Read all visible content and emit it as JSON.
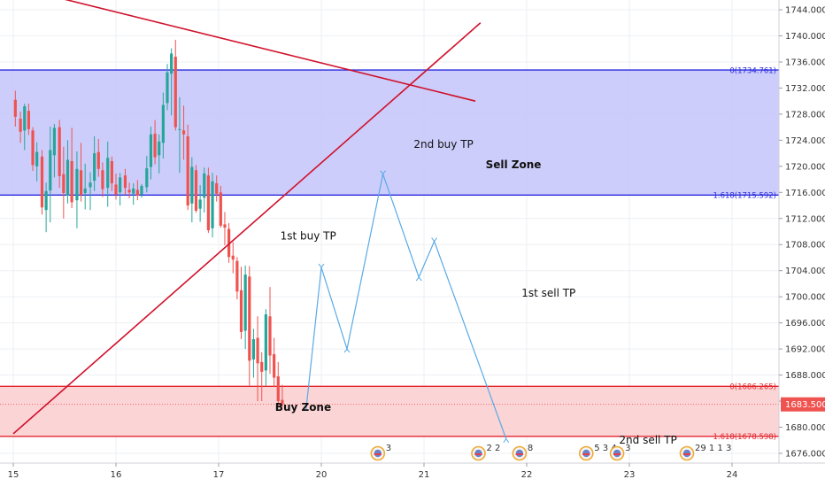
{
  "colors": {
    "up": "#26a69a",
    "down": "#ef5350",
    "sell_zone_fill": "#c7c8fb",
    "sell_zone_line": "#2a2adf",
    "buy_zone_fill": "#fbcfd2",
    "buy_zone_line": "#e3262d",
    "trendline": "#d0112b",
    "path": "#5aaae6",
    "grid": "#eeeff3",
    "price_tag": "#ef5350"
  },
  "chart_data": {
    "type": "candlestick",
    "title": "",
    "ylim": [
      1674.5,
      1745.5
    ],
    "y_ticks": [
      "1676.000",
      "1680.000",
      "1684.000",
      "1688.000",
      "1692.000",
      "1696.000",
      "1700.000",
      "1704.000",
      "1708.000",
      "1712.000",
      "1716.000",
      "1720.000",
      "1724.000",
      "1728.000",
      "1732.000",
      "1736.000",
      "1740.000",
      "1744.000"
    ],
    "x_ticks": [
      "15",
      "16",
      "17",
      "20",
      "21",
      "22",
      "23",
      "24"
    ],
    "current_price": "1683.500",
    "fib_levels": [
      {
        "label": "0(1734.761)",
        "price": 1734.761,
        "color": "sell"
      },
      {
        "label": "1.618(1715.592)",
        "price": 1715.592,
        "color": "sell"
      },
      {
        "label": "0(1686.265)",
        "price": 1686.265,
        "color": "buy"
      },
      {
        "label": "1.618(1678.598)",
        "price": 1678.598,
        "color": "buy"
      }
    ],
    "zones": [
      {
        "label": "Sell Zone",
        "top": 1734.761,
        "bottom": 1715.592
      },
      {
        "label": "Buy Zone",
        "top": 1686.265,
        "bottom": 1678.598
      }
    ],
    "annotations": [
      {
        "text": "2nd buy TP",
        "x": 17.9,
        "y": 1722.8
      },
      {
        "text": "1st buy TP",
        "x": 16.6,
        "y": 1708.8
      },
      {
        "text": "1st sell TP",
        "x": 18.95,
        "y": 1700.0
      },
      {
        "text": "2nd sell TP",
        "x": 19.9,
        "y": 1677.5
      }
    ],
    "zone_labels": [
      {
        "text": "Sell Zone",
        "x": 18.6,
        "y": 1719.7
      },
      {
        "text": "Buy Zone",
        "x": 16.55,
        "y": 1682.5
      }
    ],
    "trendlines": [
      {
        "from": [
          14.4,
          1746.0
        ],
        "to": [
          18.5,
          1730.0
        ]
      },
      {
        "from": [
          14.0,
          1679.0
        ],
        "to": [
          18.55,
          1742.0
        ]
      }
    ],
    "projection_path": [
      [
        16.85,
        1682.5
      ],
      [
        17.0,
        1704.5
      ],
      [
        17.25,
        1692.0
      ],
      [
        17.6,
        1718.8
      ],
      [
        17.95,
        1703.0
      ],
      [
        18.1,
        1708.5
      ],
      [
        18.8,
        1678.2
      ]
    ],
    "events": [
      {
        "x": 17.55,
        "count": "3"
      },
      {
        "x": 18.53,
        "count": "2 2"
      },
      {
        "x": 18.93,
        "count": "8"
      },
      {
        "x": 19.58,
        "count": "5 3 4"
      },
      {
        "x": 19.88,
        "count": "3"
      },
      {
        "x": 20.56,
        "count": "29 1 1 3"
      }
    ],
    "candles": [
      {
        "x": 14.02,
        "o": 1730.2,
        "h": 1731.6,
        "l": 1726.1,
        "c": 1727.6
      },
      {
        "x": 14.07,
        "o": 1727.3,
        "h": 1728.4,
        "l": 1723.6,
        "c": 1725.3
      },
      {
        "x": 14.11,
        "o": 1725.5,
        "h": 1729.6,
        "l": 1722.5,
        "c": 1729.2
      },
      {
        "x": 14.15,
        "o": 1728.5,
        "h": 1729.6,
        "l": 1724.8,
        "c": 1725.7
      },
      {
        "x": 14.19,
        "o": 1725.5,
        "h": 1726.0,
        "l": 1719.3,
        "c": 1720.2
      },
      {
        "x": 14.23,
        "o": 1720.0,
        "h": 1723.7,
        "l": 1717.7,
        "c": 1722.2
      },
      {
        "x": 14.28,
        "o": 1721.5,
        "h": 1722.5,
        "l": 1712.6,
        "c": 1713.7
      },
      {
        "x": 14.32,
        "o": 1713.3,
        "h": 1717.5,
        "l": 1709.9,
        "c": 1716.2
      },
      {
        "x": 14.36,
        "o": 1716.3,
        "h": 1726.1,
        "l": 1711.4,
        "c": 1722.5
      },
      {
        "x": 14.4,
        "o": 1721.7,
        "h": 1726.5,
        "l": 1718.3,
        "c": 1725.9
      },
      {
        "x": 14.45,
        "o": 1726.0,
        "h": 1727.1,
        "l": 1716.7,
        "c": 1718.5
      },
      {
        "x": 14.49,
        "o": 1718.8,
        "h": 1723.0,
        "l": 1712.0,
        "c": 1715.9
      },
      {
        "x": 14.53,
        "o": 1715.5,
        "h": 1724.0,
        "l": 1714.3,
        "c": 1721.0
      },
      {
        "x": 14.57,
        "o": 1720.8,
        "h": 1725.9,
        "l": 1713.6,
        "c": 1714.5
      },
      {
        "x": 14.62,
        "o": 1714.8,
        "h": 1722.3,
        "l": 1710.5,
        "c": 1719.6
      },
      {
        "x": 14.66,
        "o": 1719.4,
        "h": 1723.6,
        "l": 1714.6,
        "c": 1715.6
      },
      {
        "x": 14.7,
        "o": 1715.9,
        "h": 1720.4,
        "l": 1713.4,
        "c": 1716.6
      },
      {
        "x": 14.75,
        "o": 1716.8,
        "h": 1719.1,
        "l": 1713.3,
        "c": 1717.5
      },
      {
        "x": 14.79,
        "o": 1717.8,
        "h": 1724.6,
        "l": 1716.2,
        "c": 1722.0
      },
      {
        "x": 14.83,
        "o": 1722.2,
        "h": 1724.2,
        "l": 1718.4,
        "c": 1719.6
      },
      {
        "x": 14.87,
        "o": 1719.4,
        "h": 1720.6,
        "l": 1715.3,
        "c": 1716.5
      },
      {
        "x": 14.92,
        "o": 1716.7,
        "h": 1723.8,
        "l": 1713.8,
        "c": 1721.3
      },
      {
        "x": 14.96,
        "o": 1720.8,
        "h": 1721.5,
        "l": 1716.2,
        "c": 1717.4
      },
      {
        "x": 15.0,
        "o": 1717.2,
        "h": 1718.9,
        "l": 1714.9,
        "c": 1715.7
      },
      {
        "x": 15.04,
        "o": 1716.0,
        "h": 1719.0,
        "l": 1714.0,
        "c": 1718.3
      },
      {
        "x": 15.09,
        "o": 1718.6,
        "h": 1719.6,
        "l": 1715.6,
        "c": 1716.7
      },
      {
        "x": 15.13,
        "o": 1716.4,
        "h": 1717.5,
        "l": 1715.1,
        "c": 1716.0
      },
      {
        "x": 15.17,
        "o": 1715.8,
        "h": 1717.4,
        "l": 1714.1,
        "c": 1716.6
      },
      {
        "x": 15.21,
        "o": 1716.4,
        "h": 1717.9,
        "l": 1714.8,
        "c": 1715.5
      },
      {
        "x": 15.25,
        "o": 1715.7,
        "h": 1717.3,
        "l": 1715.2,
        "c": 1717.0
      },
      {
        "x": 15.3,
        "o": 1716.8,
        "h": 1721.6,
        "l": 1716.0,
        "c": 1719.7
      },
      {
        "x": 15.34,
        "o": 1719.9,
        "h": 1726.1,
        "l": 1718.0,
        "c": 1724.9
      },
      {
        "x": 15.38,
        "o": 1725.0,
        "h": 1727.1,
        "l": 1720.3,
        "c": 1721.4
      },
      {
        "x": 15.42,
        "o": 1721.7,
        "h": 1724.9,
        "l": 1718.9,
        "c": 1723.8
      },
      {
        "x": 15.46,
        "o": 1723.6,
        "h": 1731.3,
        "l": 1721.2,
        "c": 1729.4
      },
      {
        "x": 15.5,
        "o": 1729.7,
        "h": 1735.7,
        "l": 1728.6,
        "c": 1734.4
      },
      {
        "x": 15.54,
        "o": 1734.2,
        "h": 1738.1,
        "l": 1727.8,
        "c": 1737.3
      },
      {
        "x": 15.58,
        "o": 1736.8,
        "h": 1739.4,
        "l": 1725.5,
        "c": 1726.0
      },
      {
        "x": 15.62,
        "o": 1725.7,
        "h": 1730.6,
        "l": 1719.0,
        "c": 1725.7
      },
      {
        "x": 15.66,
        "o": 1725.5,
        "h": 1729.3,
        "l": 1721.0,
        "c": 1724.9
      },
      {
        "x": 15.7,
        "o": 1724.6,
        "h": 1726.4,
        "l": 1713.3,
        "c": 1714.0
      },
      {
        "x": 15.74,
        "o": 1714.3,
        "h": 1721.4,
        "l": 1711.4,
        "c": 1719.9
      },
      {
        "x": 15.78,
        "o": 1719.4,
        "h": 1720.2,
        "l": 1712.9,
        "c": 1713.2
      },
      {
        "x": 15.82,
        "o": 1713.5,
        "h": 1717.1,
        "l": 1711.5,
        "c": 1714.9
      },
      {
        "x": 15.86,
        "o": 1715.2,
        "h": 1719.8,
        "l": 1712.9,
        "c": 1718.9
      },
      {
        "x": 15.9,
        "o": 1718.6,
        "h": 1719.8,
        "l": 1709.8,
        "c": 1710.2
      },
      {
        "x": 15.94,
        "o": 1710.5,
        "h": 1719.0,
        "l": 1709.1,
        "c": 1717.7
      },
      {
        "x": 15.98,
        "o": 1717.4,
        "h": 1718.6,
        "l": 1714.6,
        "c": 1715.8
      },
      {
        "x": 16.02,
        "o": 1716.0,
        "h": 1717.0,
        "l": 1710.6,
        "c": 1710.9
      },
      {
        "x": 16.06,
        "o": 1711.1,
        "h": 1713.0,
        "l": 1707.9,
        "c": 1710.6
      },
      {
        "x": 16.1,
        "o": 1710.4,
        "h": 1711.3,
        "l": 1705.2,
        "c": 1706.1
      },
      {
        "x": 16.14,
        "o": 1706.3,
        "h": 1708.4,
        "l": 1703.6,
        "c": 1705.7
      },
      {
        "x": 16.18,
        "o": 1705.5,
        "h": 1706.1,
        "l": 1699.6,
        "c": 1700.8
      },
      {
        "x": 16.22,
        "o": 1701.0,
        "h": 1704.6,
        "l": 1693.5,
        "c": 1694.6
      },
      {
        "x": 16.26,
        "o": 1694.8,
        "h": 1704.8,
        "l": 1692.0,
        "c": 1703.4
      },
      {
        "x": 16.3,
        "o": 1703.1,
        "h": 1704.7,
        "l": 1686.4,
        "c": 1690.2
      },
      {
        "x": 16.34,
        "o": 1690.4,
        "h": 1695.1,
        "l": 1687.6,
        "c": 1693.5
      },
      {
        "x": 16.38,
        "o": 1693.7,
        "h": 1697.0,
        "l": 1684.0,
        "c": 1689.8
      },
      {
        "x": 16.42,
        "o": 1690.0,
        "h": 1691.5,
        "l": 1684.0,
        "c": 1688.5
      },
      {
        "x": 16.46,
        "o": 1688.7,
        "h": 1698.1,
        "l": 1686.4,
        "c": 1697.3
      },
      {
        "x": 16.5,
        "o": 1697.0,
        "h": 1701.5,
        "l": 1688.2,
        "c": 1691.0
      },
      {
        "x": 16.54,
        "o": 1691.2,
        "h": 1693.7,
        "l": 1686.2,
        "c": 1687.6
      },
      {
        "x": 16.58,
        "o": 1687.8,
        "h": 1690.0,
        "l": 1683.3,
        "c": 1684.0
      },
      {
        "x": 16.62,
        "o": 1684.2,
        "h": 1686.5,
        "l": 1683.1,
        "c": 1683.5
      }
    ]
  }
}
